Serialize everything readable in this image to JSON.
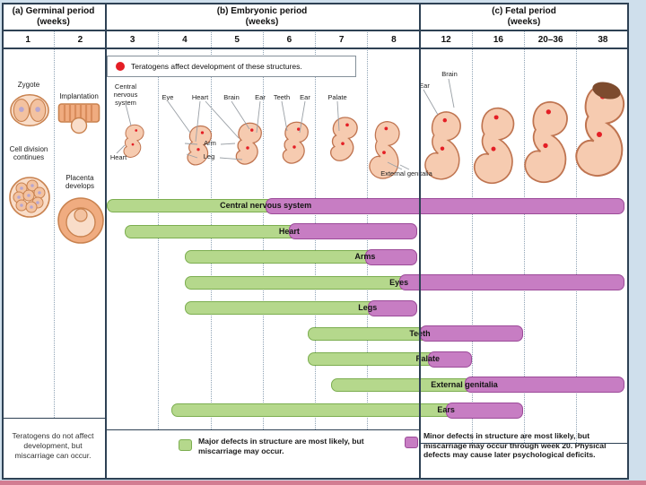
{
  "colors": {
    "green": "#b5d88c",
    "green_border": "#7cae50",
    "purple": "#c77dc3",
    "purple_border": "#9c4b99",
    "red": "#e41e25",
    "line": "#2e4154",
    "background": "#cfdfec",
    "strip": "#d27d92"
  },
  "header": {
    "periods": [
      {
        "label": "(a) Germinal period",
        "sub": "(weeks)"
      },
      {
        "label": "(b) Embryonic period",
        "sub": "(weeks)"
      },
      {
        "label": "(c) Fetal period",
        "sub": "(weeks)"
      }
    ],
    "weeks": [
      "1",
      "2",
      "3",
      "4",
      "5",
      "6",
      "7",
      "8",
      "12",
      "16",
      "20–36",
      "38"
    ]
  },
  "germinal": {
    "zygote": "Zygote",
    "cell_division": "Cell division continues",
    "implantation": "Implantation",
    "placenta": "Placenta develops"
  },
  "top_note": "Teratogens affect development of these structures.",
  "embryo_labels": {
    "cns": "Central nervous system",
    "heart_week3": "Heart",
    "eye": "Eye",
    "heart": "Heart",
    "brain": "Brain",
    "ear": "Ear",
    "arm": "Arm",
    "leg": "Leg",
    "teeth": "Teeth",
    "ear_week6": "Ear",
    "palate": "Palate",
    "external_genitalia": "External genitalia",
    "ear_week12": "Ear",
    "brain_week12": "Brain"
  },
  "bars": [
    {
      "label": "Central nervous system",
      "green_start": 2.0,
      "purple_start": 5.05,
      "end": 11.92
    },
    {
      "label": "Heart",
      "green_start": 2.35,
      "purple_start": 5.5,
      "end": 7.95
    },
    {
      "label": "Arms",
      "green_start": 3.5,
      "purple_start": 6.95,
      "end": 7.95
    },
    {
      "label": "Eyes",
      "green_start": 3.5,
      "purple_start": 7.6,
      "end": 11.92
    },
    {
      "label": "Legs",
      "green_start": 3.5,
      "purple_start": 7.0,
      "end": 7.95
    },
    {
      "label": "Teeth",
      "green_start": 5.85,
      "purple_start": 8.0,
      "end": 9.98
    },
    {
      "label": "Palate",
      "green_start": 5.85,
      "purple_start": 8.15,
      "end": 9.0
    },
    {
      "label": "External genitalia",
      "green_start": 6.3,
      "purple_start": 8.85,
      "end": 11.92
    },
    {
      "label": "Ears",
      "green_start": 3.25,
      "purple_start": 8.5,
      "end": 9.98
    }
  ],
  "bottom": {
    "no_effect": "Teratogens do not affect development, but miscarriage can occur.",
    "green_legend": "Major defects in structure are most likely, but miscarriage may occur.",
    "purple_legend": "Minor defects in structure are most likely, but miscarriage may occur through week 20. Physical defects may cause later psychological deficits."
  }
}
